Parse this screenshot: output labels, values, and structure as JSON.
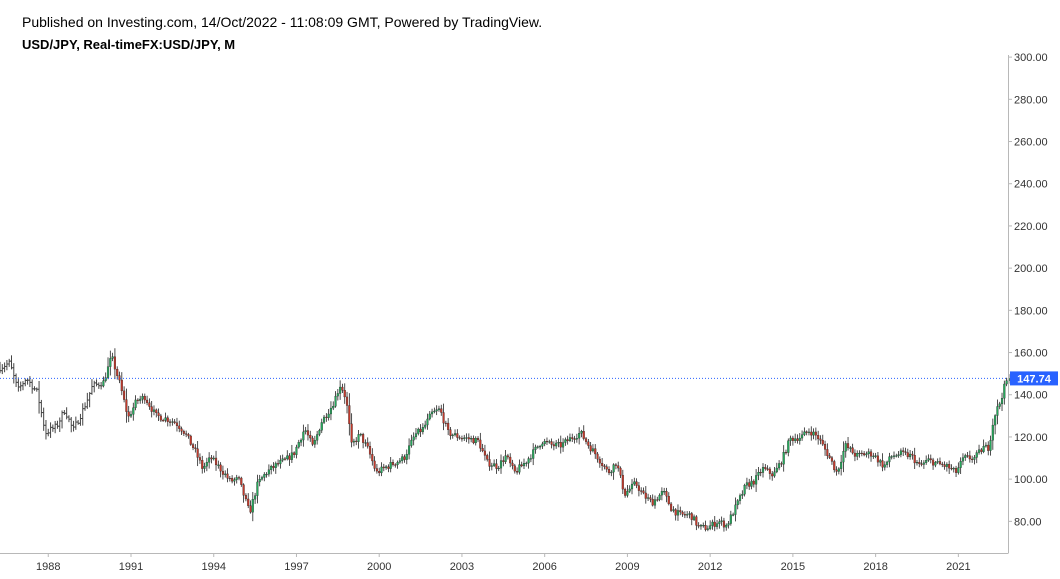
{
  "header": {
    "published": "Published on Investing.com, 14/Oct/2022 - 11:08:09 GMT, Powered by TradingView.",
    "symbol": "USD/JPY, Real-timeFX:USD/JPY, M"
  },
  "colors": {
    "up": "#26a65b",
    "down": "#c0392b",
    "bar_before_1990": "#444444",
    "price_line": "#2962ff",
    "price_badge": "#2962ff",
    "axis": "#b8b8b8"
  },
  "chart_data": {
    "type": "candlestick",
    "title": "USD/JPY, Real-timeFX:USD/JPY, M",
    "interval": "M",
    "xlabel": "",
    "ylabel": "",
    "x_range": [
      1986.25,
      2022.8
    ],
    "ylim": [
      65,
      301
    ],
    "y_ticks": [
      80,
      100,
      120,
      140,
      160,
      180,
      200,
      220,
      240,
      260,
      280,
      300
    ],
    "y_tick_labels": [
      "80.00",
      "100.00",
      "120.00",
      "140.00",
      "160.00",
      "180.00",
      "200.00",
      "220.00",
      "240.00",
      "260.00",
      "280.00",
      "300.00"
    ],
    "x_ticks": [
      1988,
      1991,
      1994,
      1997,
      2000,
      2003,
      2006,
      2009,
      2012,
      2015,
      2018,
      2021
    ],
    "x_tick_labels": [
      "1988",
      "1991",
      "1994",
      "1997",
      "2000",
      "2003",
      "2006",
      "2009",
      "2012",
      "2015",
      "2018",
      "2021"
    ],
    "last_price": 147.74,
    "last_price_label": "147.74",
    "grid": false,
    "close_path": [
      [
        1986.25,
        153
      ],
      [
        1986.6,
        155
      ],
      [
        1986.9,
        142
      ],
      [
        1987.2,
        148
      ],
      [
        1987.6,
        141
      ],
      [
        1987.9,
        122
      ],
      [
        1988.3,
        125
      ],
      [
        1988.6,
        133
      ],
      [
        1988.9,
        123
      ],
      [
        1989.3,
        134
      ],
      [
        1989.6,
        144
      ],
      [
        1990.0,
        146
      ],
      [
        1990.3,
        158
      ],
      [
        1990.6,
        145
      ],
      [
        1990.9,
        129
      ],
      [
        1991.2,
        137
      ],
      [
        1991.5,
        139
      ],
      [
        1991.9,
        130
      ],
      [
        1992.2,
        129
      ],
      [
        1992.6,
        127
      ],
      [
        1992.9,
        123
      ],
      [
        1993.3,
        114
      ],
      [
        1993.6,
        105
      ],
      [
        1993.9,
        110
      ],
      [
        1994.3,
        104
      ],
      [
        1994.6,
        99
      ],
      [
        1994.9,
        100
      ],
      [
        1995.3,
        84
      ],
      [
        1995.6,
        98
      ],
      [
        1995.9,
        103
      ],
      [
        1996.3,
        107
      ],
      [
        1996.6,
        109
      ],
      [
        1996.9,
        112
      ],
      [
        1997.3,
        124
      ],
      [
        1997.6,
        115
      ],
      [
        1997.9,
        127
      ],
      [
        1998.3,
        135
      ],
      [
        1998.6,
        145
      ],
      [
        1998.8,
        138
      ],
      [
        1999.0,
        116
      ],
      [
        1999.3,
        121
      ],
      [
        1999.6,
        114
      ],
      [
        1999.9,
        103
      ],
      [
        2000.3,
        106
      ],
      [
        2000.6,
        108
      ],
      [
        2000.9,
        110
      ],
      [
        2001.3,
        121
      ],
      [
        2001.6,
        124
      ],
      [
        2001.9,
        131
      ],
      [
        2002.2,
        133
      ],
      [
        2002.5,
        122
      ],
      [
        2002.9,
        120
      ],
      [
        2003.3,
        119
      ],
      [
        2003.6,
        118
      ],
      [
        2003.9,
        108
      ],
      [
        2004.3,
        106
      ],
      [
        2004.6,
        111
      ],
      [
        2004.9,
        103
      ],
      [
        2005.3,
        108
      ],
      [
        2005.6,
        113
      ],
      [
        2005.9,
        118
      ],
      [
        2006.3,
        116
      ],
      [
        2006.6,
        116
      ],
      [
        2006.9,
        119
      ],
      [
        2007.3,
        122
      ],
      [
        2007.6,
        116
      ],
      [
        2007.9,
        111
      ],
      [
        2008.3,
        103
      ],
      [
        2008.6,
        108
      ],
      [
        2008.9,
        93
      ],
      [
        2009.3,
        98
      ],
      [
        2009.6,
        92
      ],
      [
        2009.9,
        89
      ],
      [
        2010.3,
        94
      ],
      [
        2010.6,
        86
      ],
      [
        2010.9,
        83
      ],
      [
        2011.3,
        83
      ],
      [
        2011.6,
        77
      ],
      [
        2011.9,
        77
      ],
      [
        2012.3,
        80
      ],
      [
        2012.6,
        78
      ],
      [
        2012.9,
        86
      ],
      [
        2013.3,
        97
      ],
      [
        2013.6,
        99
      ],
      [
        2013.9,
        105
      ],
      [
        2014.3,
        102
      ],
      [
        2014.6,
        109
      ],
      [
        2014.9,
        119
      ],
      [
        2015.3,
        120
      ],
      [
        2015.6,
        123
      ],
      [
        2015.9,
        120
      ],
      [
        2016.3,
        111
      ],
      [
        2016.6,
        103
      ],
      [
        2016.9,
        116
      ],
      [
        2017.3,
        111
      ],
      [
        2017.6,
        112
      ],
      [
        2017.9,
        112
      ],
      [
        2018.3,
        106
      ],
      [
        2018.6,
        111
      ],
      [
        2018.9,
        112
      ],
      [
        2019.3,
        111
      ],
      [
        2019.6,
        106
      ],
      [
        2019.9,
        109
      ],
      [
        2020.3,
        107
      ],
      [
        2020.6,
        106
      ],
      [
        2020.9,
        103
      ],
      [
        2021.2,
        110
      ],
      [
        2021.6,
        110
      ],
      [
        2021.9,
        115
      ],
      [
        2022.1,
        115
      ],
      [
        2022.3,
        130
      ],
      [
        2022.5,
        136
      ],
      [
        2022.7,
        145
      ],
      [
        2022.8,
        147.74
      ]
    ]
  }
}
